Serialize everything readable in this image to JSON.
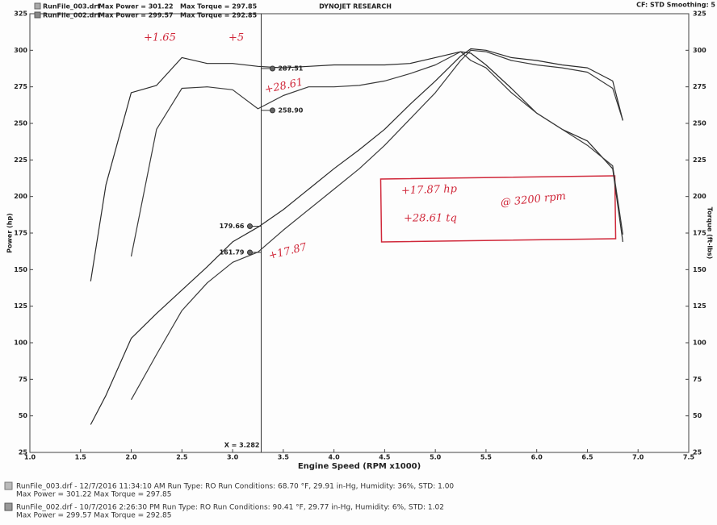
{
  "chart_data": {
    "type": "line",
    "title": "DYNOJET RESEARCH",
    "subtitle": "CF: STD  Smoothing: 5",
    "x_label": "Engine Speed (RPM x1000)",
    "y_label": "Power (hp)",
    "y2_label": "Torque (ft-lbs)",
    "x": [
      1.6,
      1.75,
      2.0,
      2.25,
      2.5,
      2.75,
      3.0,
      3.25,
      3.5,
      3.75,
      4.0,
      4.25,
      4.5,
      4.75,
      5.0,
      5.25,
      5.35,
      5.5,
      5.75,
      6.0,
      6.25,
      6.5,
      6.75,
      6.85
    ],
    "series": [
      {
        "name": "RunFile_003.drf",
        "color": "#2b2b2b",
        "values": [
          44,
          64,
          103,
          120,
          136,
          152,
          169,
          179,
          191,
          205,
          219,
          232,
          246,
          263,
          279,
          296,
          301,
          300,
          295,
          293,
          290,
          288,
          279,
          252
        ]
      },
      {
        "name": "RunFile_002.drf",
        "color": "#3a3a3a",
        "values": [
          null,
          null,
          61,
          92,
          122,
          141,
          155,
          162,
          177,
          191,
          205,
          219,
          235,
          253,
          271,
          293,
          300,
          299,
          293,
          290,
          288,
          285,
          274,
          252
        ]
      },
      {
        "name": "RunFile_003.drf",
        "color": "#2b2b2b",
        "axis": "y2",
        "values": [
          142,
          208,
          271,
          276,
          295,
          291,
          291,
          289,
          288,
          289,
          290,
          290,
          290,
          291,
          295,
          299,
          298,
          290,
          274,
          257,
          246,
          238,
          219,
          169
        ]
      },
      {
        "name": "RunFile_002.drf",
        "color": "#3a3a3a",
        "axis": "y2",
        "values": [
          null,
          null,
          159,
          246,
          274,
          275,
          273,
          260,
          269,
          275,
          275,
          276,
          279,
          284,
          290,
          299,
          293,
          288,
          271,
          257,
          246,
          235,
          221,
          174
        ]
      }
    ],
    "legend_stats": [
      {
        "power": "Max Power = 301.22",
        "torque": "Max Torque = 297.85"
      },
      {
        "power": "Max Power = 299.57",
        "torque": "Max Torque = 292.85"
      }
    ],
    "xlim": [
      1,
      7.5
    ],
    "xticks": [
      {
        "value": 1,
        "label": "1.0"
      },
      1.5,
      {
        "value": 2,
        "label": "2.0"
      },
      2.5,
      {
        "value": 3,
        "label": "3.0"
      },
      3.5,
      {
        "value": 4,
        "label": "4.0"
      },
      4.5,
      {
        "value": 5,
        "label": "5.0"
      },
      5.5,
      {
        "value": 6,
        "label": "6.0"
      },
      6.5,
      {
        "value": 7,
        "label": "7.0"
      },
      7.5
    ],
    "ylim": [
      25,
      325
    ],
    "yticks": [
      25,
      50,
      75,
      100,
      125,
      150,
      175,
      200,
      225,
      250,
      275,
      300,
      325
    ],
    "y2lim": [
      25,
      325
    ],
    "y2ticks": [
      25,
      50,
      75,
      100,
      125,
      150,
      175,
      200,
      225,
      250,
      275,
      300,
      325
    ],
    "grid": false,
    "cursor": {
      "x": 3.282,
      "label": "X = 3.282",
      "values": [
        287.51,
        258.9,
        179.66,
        161.79
      ],
      "value_labels": [
        "287.51",
        "258.90",
        "179.66",
        "161.79"
      ]
    },
    "annotations": [
      "+1.65",
      "+5",
      "+28.61",
      "+17.87",
      "+17.87 hp",
      "@ 3200 rpm",
      "+28.61 tq"
    ],
    "footer": [
      [
        "RunFile_003.drf - 12/7/2016 11:34:10 AM  Run Type: RO  Run Conditions: 68.70 °F, 29.91 in-Hg,  Humidity:  36%, STD: 1.00",
        "Max Power = 301.22  Max Torque = 297.85"
      ],
      [
        "RunFile_002.drf - 10/7/2016 2:26:30 PM  Run Type: RO  Run Conditions: 90.41 °F, 29.77 in-Hg,  Humidity:  6%, STD: 1.02",
        "Max Power = 299.57  Max Torque = 292.85"
      ]
    ]
  }
}
